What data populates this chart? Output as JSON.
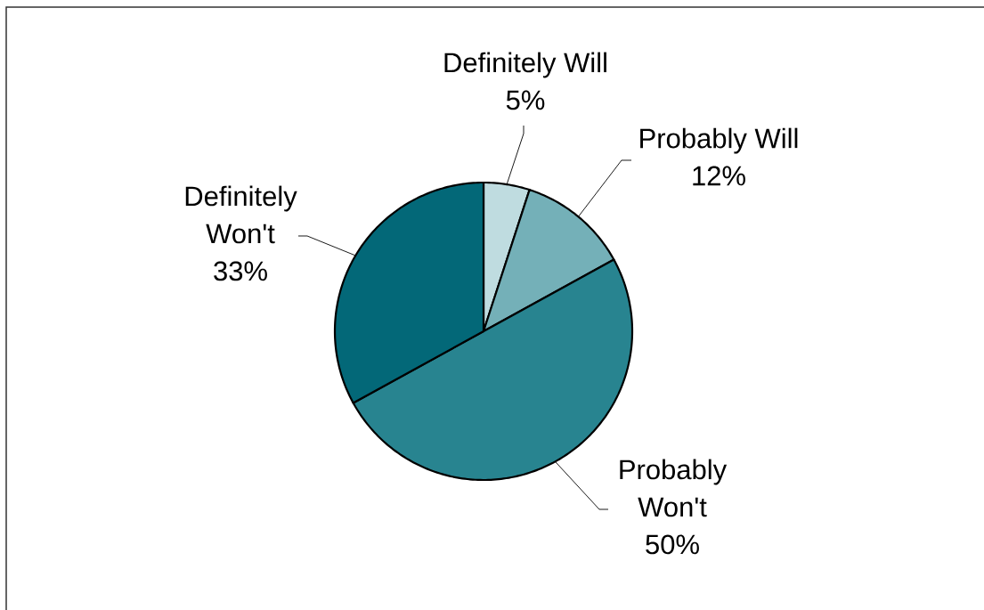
{
  "chart_data": {
    "type": "pie",
    "categories": [
      "Definitely Will",
      "Probably Will",
      "Probably Won't",
      "Definitely Won't"
    ],
    "values": [
      5,
      12,
      50,
      33
    ],
    "colors": [
      "#bfdce0",
      "#74b0b8",
      "#288490",
      "#036878"
    ],
    "value_labels": [
      "5%",
      "12%",
      "50%",
      "33%"
    ]
  }
}
